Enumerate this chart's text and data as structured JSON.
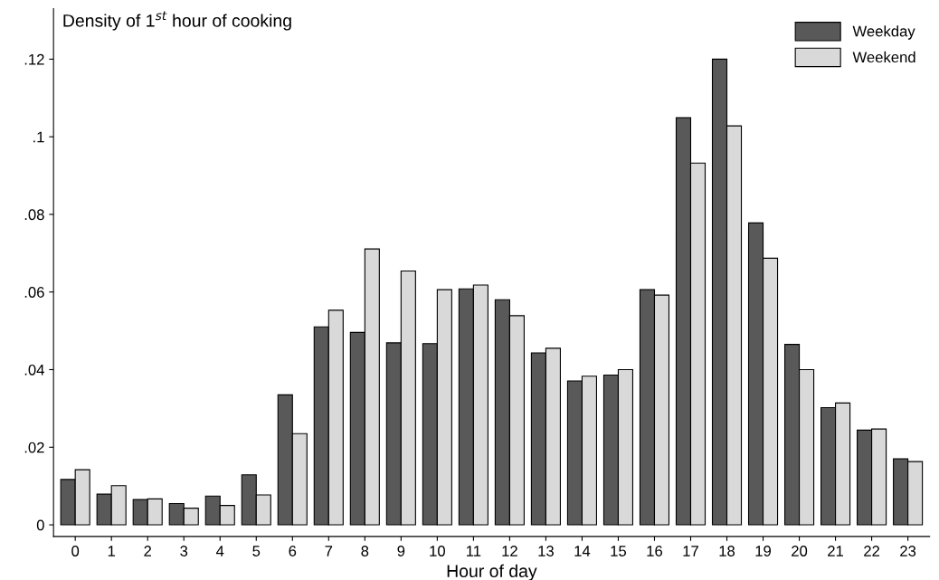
{
  "chart_data": {
    "type": "bar",
    "title": "Density of 1$^{st}$ hour of cooking",
    "xlabel": "Hour of day",
    "categories": [
      "0",
      "1",
      "2",
      "3",
      "4",
      "5",
      "6",
      "7",
      "8",
      "9",
      "10",
      "11",
      "12",
      "13",
      "14",
      "15",
      "16",
      "17",
      "18",
      "19",
      "20",
      "21",
      "22",
      "23"
    ],
    "series": [
      {
        "name": "Weekday",
        "color": "#595959",
        "values": [
          0.0117,
          0.0079,
          0.0065,
          0.0055,
          0.0074,
          0.0129,
          0.0335,
          0.051,
          0.0496,
          0.0469,
          0.0467,
          0.0608,
          0.058,
          0.0443,
          0.0371,
          0.0386,
          0.0606,
          0.1049,
          0.12,
          0.0778,
          0.0465,
          0.0302,
          0.0244,
          0.017
        ]
      },
      {
        "name": "Weekend",
        "color": "#d9d9d9",
        "values": [
          0.0142,
          0.0101,
          0.0067,
          0.0043,
          0.005,
          0.0077,
          0.0235,
          0.0553,
          0.0711,
          0.0654,
          0.0606,
          0.0618,
          0.0539,
          0.0455,
          0.0383,
          0.04,
          0.0592,
          0.0932,
          0.1028,
          0.0687,
          0.04,
          0.0314,
          0.0247,
          0.0163
        ]
      }
    ],
    "ylim": [
      -0.003,
      0.133
    ],
    "yticks": [
      {
        "value": 0,
        "label": "0"
      },
      {
        "value": 0.02,
        "label": ".02"
      },
      {
        "value": 0.04,
        "label": ".04"
      },
      {
        "value": 0.06,
        "label": ".06"
      },
      {
        "value": 0.08,
        "label": ".08"
      },
      {
        "value": 0.1,
        "label": ".1"
      },
      {
        "value": 0.12,
        "label": ".12"
      }
    ],
    "grid": false,
    "legend": "top right"
  }
}
